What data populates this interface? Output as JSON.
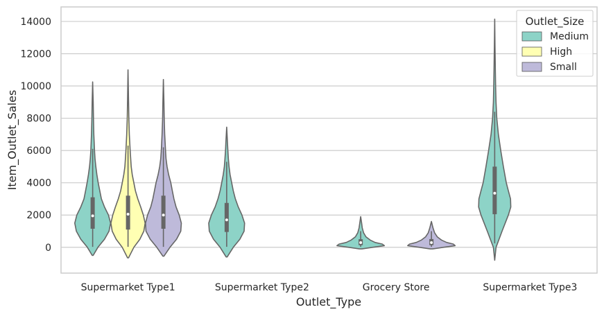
{
  "chart_data": {
    "type": "violin",
    "xlabel": "Outlet_Type",
    "ylabel": "Item_Outlet_Sales",
    "ylim": [
      -1600,
      14900
    ],
    "yticks": [
      0,
      2000,
      4000,
      6000,
      8000,
      10000,
      12000,
      14000
    ],
    "ytick_labels": [
      "0",
      "2000",
      "4000",
      "6000",
      "8000",
      "10000",
      "12000",
      "14000"
    ],
    "categories": [
      "Supermarket Type1",
      "Supermarket Type2",
      "Grocery Store",
      "Supermarket Type3"
    ],
    "grid": "horizontal",
    "legend": {
      "title": "Outlet_Size",
      "placement": "top-right",
      "entries": [
        {
          "name": "Medium",
          "color": "#8dd3c7"
        },
        {
          "name": "High",
          "color": "#ffffb3"
        },
        {
          "name": "Small",
          "color": "#bebada"
        }
      ]
    },
    "colors": {
      "line": "#666666",
      "grid": "#cccccc",
      "frame": "#cccccc"
    },
    "series": [
      {
        "name": "Medium",
        "violins": [
          {
            "category": "Supermarket Type1",
            "min": -500,
            "max": 10250,
            "q1": 1150,
            "median": 1950,
            "q3": 3100,
            "whisker_low": 30,
            "whisker_high": 6100,
            "profile": [
              [
                -500,
                0.02
              ],
              [
                0,
                0.2
              ],
              [
                500,
                0.45
              ],
              [
                1000,
                0.62
              ],
              [
                1500,
                0.68
              ],
              [
                2000,
                0.6
              ],
              [
                2500,
                0.45
              ],
              [
                3000,
                0.33
              ],
              [
                3500,
                0.27
              ],
              [
                4000,
                0.21
              ],
              [
                4500,
                0.16
              ],
              [
                5000,
                0.12
              ],
              [
                5500,
                0.09
              ],
              [
                6000,
                0.07
              ],
              [
                7000,
                0.045
              ],
              [
                8000,
                0.03
              ],
              [
                9000,
                0.02
              ],
              [
                10250,
                0
              ]
            ]
          },
          {
            "category": "Supermarket Type2",
            "min": -600,
            "max": 7450,
            "q1": 950,
            "median": 1700,
            "q3": 2750,
            "whisker_low": 30,
            "whisker_high": 5300,
            "profile": [
              [
                -600,
                0.02
              ],
              [
                0,
                0.25
              ],
              [
                500,
                0.5
              ],
              [
                1000,
                0.66
              ],
              [
                1500,
                0.68
              ],
              [
                2000,
                0.58
              ],
              [
                2500,
                0.44
              ],
              [
                3000,
                0.33
              ],
              [
                3500,
                0.25
              ],
              [
                4000,
                0.19
              ],
              [
                4500,
                0.13
              ],
              [
                5000,
                0.09
              ],
              [
                5500,
                0.065
              ],
              [
                6000,
                0.045
              ],
              [
                6500,
                0.03
              ],
              [
                7450,
                0
              ]
            ]
          },
          {
            "category": "Grocery Store",
            "min": -100,
            "max": 1900,
            "q1": 130,
            "median": 290,
            "q3": 500,
            "whisker_low": 30,
            "whisker_high": 1000,
            "profile": [
              [
                -100,
                0.05
              ],
              [
                0,
                0.45
              ],
              [
                100,
                0.9
              ],
              [
                200,
                0.82
              ],
              [
                300,
                0.55
              ],
              [
                450,
                0.36
              ],
              [
                650,
                0.2
              ],
              [
                900,
                0.11
              ],
              [
                1200,
                0.06
              ],
              [
                1500,
                0.035
              ],
              [
                1900,
                0
              ]
            ]
          },
          {
            "category": "Supermarket Type3",
            "min": -800,
            "max": 14150,
            "q1": 2050,
            "median": 3350,
            "q3": 5000,
            "whisker_low": 240,
            "whisker_high": 8400,
            "profile": [
              [
                -800,
                0
              ],
              [
                0,
                0.05
              ],
              [
                1000,
                0.28
              ],
              [
                2000,
                0.52
              ],
              [
                2500,
                0.61
              ],
              [
                3000,
                0.6
              ],
              [
                3500,
                0.52
              ],
              [
                4000,
                0.44
              ],
              [
                5000,
                0.33
              ],
              [
                6000,
                0.23
              ],
              [
                7000,
                0.14
              ],
              [
                8000,
                0.08
              ],
              [
                9000,
                0.05
              ],
              [
                10000,
                0.035
              ],
              [
                11000,
                0.025
              ],
              [
                12500,
                0.012
              ],
              [
                14150,
                0
              ]
            ]
          }
        ]
      },
      {
        "name": "High",
        "violins": [
          {
            "category": "Supermarket Type1",
            "min": -650,
            "max": 11000,
            "q1": 1100,
            "median": 2050,
            "q3": 3200,
            "whisker_low": 30,
            "whisker_high": 6300,
            "profile": [
              [
                -650,
                0.02
              ],
              [
                0,
                0.22
              ],
              [
                500,
                0.45
              ],
              [
                1000,
                0.6
              ],
              [
                1500,
                0.65
              ],
              [
                2000,
                0.58
              ],
              [
                2500,
                0.48
              ],
              [
                3000,
                0.37
              ],
              [
                3500,
                0.28
              ],
              [
                4000,
                0.22
              ],
              [
                4500,
                0.16
              ],
              [
                5000,
                0.12
              ],
              [
                6000,
                0.08
              ],
              [
                7000,
                0.05
              ],
              [
                8000,
                0.03
              ],
              [
                9000,
                0.02
              ],
              [
                11000,
                0
              ]
            ]
          }
        ]
      },
      {
        "name": "Small",
        "violins": [
          {
            "category": "Supermarket Type1",
            "min": -550,
            "max": 10400,
            "q1": 1150,
            "median": 2000,
            "q3": 3200,
            "whisker_low": 30,
            "whisker_high": 6200,
            "profile": [
              [
                -550,
                0.02
              ],
              [
                0,
                0.25
              ],
              [
                500,
                0.5
              ],
              [
                1000,
                0.66
              ],
              [
                1500,
                0.68
              ],
              [
                2000,
                0.6
              ],
              [
                2500,
                0.48
              ],
              [
                3000,
                0.4
              ],
              [
                3500,
                0.34
              ],
              [
                4000,
                0.28
              ],
              [
                4500,
                0.2
              ],
              [
                5000,
                0.14
              ],
              [
                5500,
                0.1
              ],
              [
                6000,
                0.08
              ],
              [
                7000,
                0.05
              ],
              [
                8000,
                0.03
              ],
              [
                9000,
                0.02
              ],
              [
                10400,
                0
              ]
            ]
          },
          {
            "category": "Grocery Store",
            "min": -100,
            "max": 1600,
            "q1": 130,
            "median": 290,
            "q3": 510,
            "whisker_low": 30,
            "whisker_high": 1000,
            "profile": [
              [
                -100,
                0.05
              ],
              [
                0,
                0.45
              ],
              [
                100,
                0.9
              ],
              [
                200,
                0.83
              ],
              [
                300,
                0.58
              ],
              [
                450,
                0.38
              ],
              [
                650,
                0.22
              ],
              [
                900,
                0.12
              ],
              [
                1200,
                0.06
              ],
              [
                1600,
                0
              ]
            ]
          }
        ]
      }
    ]
  }
}
